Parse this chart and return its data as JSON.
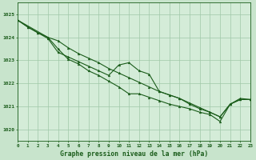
{
  "title": "Graphe pression niveau de la mer (hPa)",
  "background_color": "#c8e4cc",
  "plot_bg_color": "#d4ecd8",
  "grid_color": "#a0c8a8",
  "line_color": "#1a5c1a",
  "xlim": [
    0,
    23
  ],
  "ylim": [
    1019.5,
    1025.5
  ],
  "yticks": [
    1020,
    1021,
    1022,
    1023,
    1024,
    1025
  ],
  "xticks": [
    0,
    1,
    2,
    3,
    4,
    5,
    6,
    7,
    8,
    9,
    10,
    11,
    12,
    13,
    14,
    15,
    16,
    17,
    18,
    19,
    20,
    21,
    22,
    23
  ],
  "series1_x": [
    0,
    1,
    2,
    3,
    4,
    5,
    6,
    7,
    8,
    9,
    10,
    11,
    12,
    13,
    14,
    15,
    16,
    17,
    18,
    19,
    20,
    21,
    22,
    23
  ],
  "series1_y": [
    1024.75,
    1024.45,
    1024.2,
    1024.0,
    1023.85,
    1023.55,
    1023.3,
    1023.1,
    1022.9,
    1022.65,
    1022.45,
    1022.25,
    1022.05,
    1021.85,
    1021.65,
    1021.5,
    1021.35,
    1021.15,
    1020.95,
    1020.75,
    1020.55,
    1021.1,
    1021.3,
    1021.3
  ],
  "series2_x": [
    0,
    1,
    2,
    3,
    4,
    5,
    6,
    7,
    8,
    9,
    10,
    11,
    12,
    13,
    14,
    15,
    16,
    17,
    18,
    19,
    20,
    21,
    22,
    23
  ],
  "series2_y": [
    1024.75,
    1024.45,
    1024.2,
    1023.95,
    1023.35,
    1023.15,
    1022.95,
    1022.75,
    1022.55,
    1022.35,
    1022.8,
    1022.9,
    1022.55,
    1022.4,
    1021.65,
    1021.5,
    1021.35,
    1021.1,
    1020.9,
    1020.75,
    1020.55,
    1021.1,
    1021.3,
    1021.3
  ],
  "series3_x": [
    0,
    3,
    4,
    5,
    6,
    7,
    8,
    9,
    10,
    11,
    12,
    13,
    14,
    15,
    16,
    17,
    18,
    19,
    20,
    21,
    22,
    23
  ],
  "series3_y": [
    1024.75,
    1024.0,
    1023.5,
    1023.05,
    1022.85,
    1022.55,
    1022.35,
    1022.1,
    1021.85,
    1021.55,
    1021.55,
    1021.4,
    1021.25,
    1021.1,
    1021.0,
    1020.9,
    1020.75,
    1020.65,
    1020.35,
    1021.1,
    1021.35,
    1021.3
  ]
}
